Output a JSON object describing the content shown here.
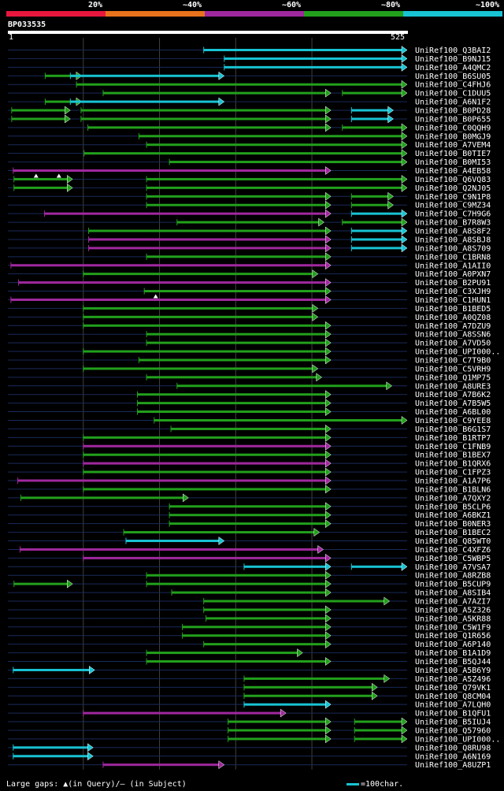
{
  "legend": [
    {
      "label": "20%",
      "color": "#e8173e"
    },
    {
      "label": "~40%",
      "color": "#e8731c"
    },
    {
      "label": "~60%",
      "color": "#a0289e"
    },
    {
      "label": "~80%",
      "color": "#22a01c"
    },
    {
      "label": "~100%",
      "color": "#18c3d3"
    }
  ],
  "query": {
    "id": "BP033535",
    "start": "1",
    "end": "525",
    "length": 525
  },
  "footer": {
    "gaps_text": "Large gaps: ▲(in Query)/– (in Subject)",
    "scale_text": "=100char."
  },
  "colors": {
    "purple": "#a0289e",
    "green": "#22a01c",
    "cyan": "#18c3d3",
    "rowline": "#1a2a5a",
    "grid": "#404040"
  },
  "chart_data": {
    "type": "alignment",
    "title": "BP033535",
    "x_unit": "residue",
    "xlim": [
      1,
      525
    ],
    "grid_at": [
      100,
      200,
      300,
      400
    ],
    "hits": [
      {
        "name": "UniRef100_Q3BAI2",
        "segs": [
          [
            258,
            525,
            "c"
          ]
        ]
      },
      {
        "name": "UniRef100_B9NJ15",
        "segs": [
          [
            285,
            525,
            "c"
          ]
        ]
      },
      {
        "name": "UniRef100_A4QMC2",
        "segs": [
          [
            285,
            525,
            "c"
          ]
        ]
      },
      {
        "name": "UniRef100_B6SU05",
        "segs": [
          [
            50,
            98,
            "g"
          ],
          [
            83,
            285,
            "c"
          ]
        ]
      },
      {
        "name": "UniRef100_C4FHJ6",
        "segs": [
          [
            91,
            525,
            "g"
          ]
        ]
      },
      {
        "name": "UniRef100_C1DUU5",
        "segs": [
          [
            126,
            425,
            "g"
          ],
          [
            440,
            525,
            "g"
          ]
        ]
      },
      {
        "name": "UniRef100_A6N1F2",
        "segs": [
          [
            50,
            98,
            "g"
          ],
          [
            83,
            285,
            "c"
          ]
        ]
      },
      {
        "name": "UniRef100_B0PD28",
        "segs": [
          [
            6,
            83,
            "g"
          ],
          [
            97,
            425,
            "g"
          ],
          [
            452,
            507,
            "c"
          ]
        ]
      },
      {
        "name": "UniRef100_B0P655",
        "segs": [
          [
            6,
            83,
            "g"
          ],
          [
            97,
            425,
            "g"
          ],
          [
            452,
            507,
            "c"
          ]
        ]
      },
      {
        "name": "UniRef100_C0QQH9",
        "segs": [
          [
            106,
            425,
            "g"
          ],
          [
            440,
            525,
            "g"
          ]
        ]
      },
      {
        "name": "UniRef100_B0MGJ9",
        "segs": [
          [
            173,
            525,
            "g"
          ]
        ]
      },
      {
        "name": "UniRef100_A7VEM4",
        "segs": [
          [
            183,
            525,
            "g"
          ]
        ]
      },
      {
        "name": "UniRef100_B0TIE7",
        "segs": [
          [
            101,
            525,
            "g"
          ]
        ]
      },
      {
        "name": "UniRef100_B0MI53",
        "segs": [
          [
            213,
            525,
            "g"
          ]
        ]
      },
      {
        "name": "UniRef100_A4EB58",
        "segs": [
          [
            8,
            425,
            "p"
          ]
        ],
        "gaps": [
          38,
          68
        ]
      },
      {
        "name": "UniRef100_Q6VQ83",
        "segs": [
          [
            9,
            86,
            "g"
          ],
          [
            183,
            525,
            "g"
          ]
        ]
      },
      {
        "name": "UniRef100_Q2NJ05",
        "segs": [
          [
            9,
            86,
            "g"
          ],
          [
            183,
            525,
            "g"
          ]
        ]
      },
      {
        "name": "UniRef100_C9N1P8",
        "segs": [
          [
            183,
            425,
            "g"
          ],
          [
            452,
            507,
            "g"
          ]
        ]
      },
      {
        "name": "UniRef100_C9MZ34",
        "segs": [
          [
            183,
            425,
            "g"
          ],
          [
            452,
            507,
            "g"
          ]
        ]
      },
      {
        "name": "UniRef100_C7H9G6",
        "segs": [
          [
            49,
            425,
            "p"
          ],
          [
            452,
            525,
            "c"
          ]
        ]
      },
      {
        "name": "UniRef100_B7R8W3",
        "segs": [
          [
            223,
            416,
            "g"
          ],
          [
            440,
            525,
            "g"
          ]
        ]
      },
      {
        "name": "UniRef100_A8S8F2",
        "segs": [
          [
            107,
            425,
            "g"
          ],
          [
            452,
            525,
            "c"
          ]
        ]
      },
      {
        "name": "UniRef100_A8SBJ8",
        "segs": [
          [
            107,
            425,
            "p"
          ],
          [
            452,
            525,
            "c"
          ]
        ]
      },
      {
        "name": "UniRef100_A8S709",
        "segs": [
          [
            107,
            425,
            "p"
          ],
          [
            452,
            525,
            "c"
          ]
        ]
      },
      {
        "name": "UniRef100_C1BRN8",
        "segs": [
          [
            183,
            425,
            "g"
          ]
        ]
      },
      {
        "name": "UniRef100_A1AII0",
        "segs": [
          [
            5,
            425,
            "p"
          ]
        ]
      },
      {
        "name": "UniRef100_A0PXN7",
        "segs": [
          [
            100,
            408,
            "g"
          ]
        ]
      },
      {
        "name": "UniRef100_B2PU91",
        "segs": [
          [
            15,
            425,
            "p"
          ]
        ]
      },
      {
        "name": "UniRef100_C3XJH9",
        "segs": [
          [
            180,
            425,
            "g"
          ]
        ],
        "gaps": [
          195
        ]
      },
      {
        "name": "UniRef100_C1HUN1",
        "segs": [
          [
            5,
            425,
            "p"
          ]
        ]
      },
      {
        "name": "UniRef100_B1BED5",
        "segs": [
          [
            100,
            408,
            "g"
          ]
        ]
      },
      {
        "name": "UniRef100_A0QZ08",
        "segs": [
          [
            100,
            408,
            "g"
          ]
        ]
      },
      {
        "name": "UniRef100_A7DZU9",
        "segs": [
          [
            100,
            425,
            "g"
          ]
        ]
      },
      {
        "name": "UniRef100_A8SSN6",
        "segs": [
          [
            183,
            425,
            "g"
          ]
        ]
      },
      {
        "name": "UniRef100_A7VD50",
        "segs": [
          [
            183,
            425,
            "g"
          ]
        ]
      },
      {
        "name": "UniRef100_UPI000..",
        "segs": [
          [
            100,
            425,
            "g"
          ]
        ]
      },
      {
        "name": "UniRef100_C7T9B0",
        "segs": [
          [
            173,
            425,
            "g"
          ]
        ]
      },
      {
        "name": "UniRef100_C5VRH9",
        "segs": [
          [
            100,
            408,
            "g"
          ]
        ]
      },
      {
        "name": "UniRef100_Q1MP75",
        "segs": [
          [
            183,
            413,
            "g"
          ]
        ]
      },
      {
        "name": "UniRef100_A8URE3",
        "segs": [
          [
            223,
            505,
            "g"
          ]
        ]
      },
      {
        "name": "UniRef100_A7B6K2",
        "segs": [
          [
            171,
            425,
            "g"
          ]
        ]
      },
      {
        "name": "UniRef100_A7B5W5",
        "segs": [
          [
            171,
            425,
            "g"
          ]
        ]
      },
      {
        "name": "UniRef100_A6BL00",
        "segs": [
          [
            171,
            425,
            "g"
          ]
        ]
      },
      {
        "name": "UniRef100_C9YEE8",
        "segs": [
          [
            193,
            525,
            "g"
          ]
        ]
      },
      {
        "name": "UniRef100_B6G1S7",
        "segs": [
          [
            215,
            425,
            "g"
          ]
        ]
      },
      {
        "name": "UniRef100_B1RTP7",
        "segs": [
          [
            100,
            425,
            "g"
          ]
        ]
      },
      {
        "name": "UniRef100_C1FNB9",
        "segs": [
          [
            100,
            425,
            "p"
          ]
        ]
      },
      {
        "name": "UniRef100_B1BEX7",
        "segs": [
          [
            100,
            425,
            "g"
          ]
        ]
      },
      {
        "name": "UniRef100_B1QRX6",
        "segs": [
          [
            100,
            425,
            "p"
          ]
        ]
      },
      {
        "name": "UniRef100_C1FPZ3",
        "segs": [
          [
            100,
            425,
            "g"
          ]
        ]
      },
      {
        "name": "UniRef100_A1A7P6",
        "segs": [
          [
            14,
            425,
            "p"
          ]
        ]
      },
      {
        "name": "UniRef100_B1BLN6",
        "segs": [
          [
            100,
            425,
            "g"
          ]
        ]
      },
      {
        "name": "UniRef100_A7QXY2",
        "segs": [
          [
            18,
            238,
            "g"
          ]
        ]
      },
      {
        "name": "UniRef100_B5CLP6",
        "segs": [
          [
            213,
            425,
            "g"
          ]
        ]
      },
      {
        "name": "UniRef100_A6BKZ1",
        "segs": [
          [
            213,
            425,
            "g"
          ]
        ]
      },
      {
        "name": "UniRef100_B0NER3",
        "segs": [
          [
            213,
            425,
            "g"
          ]
        ]
      },
      {
        "name": "UniRef100_B1BEC2",
        "segs": [
          [
            153,
            410,
            "g"
          ]
        ]
      },
      {
        "name": "UniRef100_Q85WT0",
        "segs": [
          [
            156,
            285,
            "c"
          ]
        ]
      },
      {
        "name": "UniRef100_C4XFZ6",
        "segs": [
          [
            17,
            415,
            "p"
          ]
        ]
      },
      {
        "name": "UniRef100_C5WBP5",
        "segs": [
          [
            100,
            425,
            "p"
          ]
        ]
      },
      {
        "name": "UniRef100_A7VSA7",
        "segs": [
          [
            311,
            425,
            "c"
          ],
          [
            452,
            525,
            "c"
          ]
        ]
      },
      {
        "name": "UniRef100_A8RZB8",
        "segs": [
          [
            183,
            425,
            "g"
          ]
        ]
      },
      {
        "name": "UniRef100_B5CUP9",
        "segs": [
          [
            9,
            86,
            "g"
          ],
          [
            183,
            425,
            "g"
          ]
        ]
      },
      {
        "name": "UniRef100_A8SIB4",
        "segs": [
          [
            216,
            425,
            "g"
          ]
        ]
      },
      {
        "name": "UniRef100_A7AZI7",
        "segs": [
          [
            258,
            502,
            "g"
          ]
        ]
      },
      {
        "name": "UniRef100_A5Z326",
        "segs": [
          [
            258,
            425,
            "g"
          ]
        ]
      },
      {
        "name": "UniRef100_A5KR88",
        "segs": [
          [
            261,
            425,
            "g"
          ]
        ]
      },
      {
        "name": "UniRef100_C5W1F9",
        "segs": [
          [
            230,
            425,
            "g"
          ]
        ]
      },
      {
        "name": "UniRef100_Q1R656",
        "segs": [
          [
            230,
            425,
            "g"
          ]
        ]
      },
      {
        "name": "UniRef100_A6P140",
        "segs": [
          [
            258,
            425,
            "g"
          ]
        ]
      },
      {
        "name": "UniRef100_B1A1D9",
        "segs": [
          [
            183,
            388,
            "g"
          ]
        ]
      },
      {
        "name": "UniRef100_B5QJ44",
        "segs": [
          [
            183,
            425,
            "g"
          ]
        ]
      },
      {
        "name": "UniRef100_A5B6Y9",
        "segs": [
          [
            8,
            115,
            "c"
          ]
        ]
      },
      {
        "name": "UniRef100_A5Z496",
        "segs": [
          [
            311,
            502,
            "g"
          ]
        ]
      },
      {
        "name": "UniRef100_Q79VK1",
        "segs": [
          [
            311,
            486,
            "g"
          ]
        ]
      },
      {
        "name": "UniRef100_Q8CM04",
        "segs": [
          [
            311,
            486,
            "g"
          ]
        ]
      },
      {
        "name": "UniRef100_A7LQH0",
        "segs": [
          [
            311,
            425,
            "c"
          ]
        ]
      },
      {
        "name": "UniRef100_B1QFU1",
        "segs": [
          [
            100,
            366,
            "p"
          ]
        ]
      },
      {
        "name": "UniRef100_B5IUJ4",
        "segs": [
          [
            290,
            425,
            "g"
          ],
          [
            456,
            525,
            "g"
          ]
        ]
      },
      {
        "name": "UniRef100_Q57960",
        "segs": [
          [
            290,
            425,
            "g"
          ],
          [
            456,
            525,
            "g"
          ]
        ]
      },
      {
        "name": "UniRef100_UPI000..",
        "segs": [
          [
            290,
            425,
            "g"
          ],
          [
            456,
            525,
            "g"
          ]
        ]
      },
      {
        "name": "UniRef100_Q8RU98",
        "segs": [
          [
            8,
            113,
            "c"
          ]
        ]
      },
      {
        "name": "UniRef100_A6N169",
        "segs": [
          [
            8,
            113,
            "c"
          ]
        ]
      },
      {
        "name": "UniRef100_A8UZP1",
        "segs": [
          [
            126,
            285,
            "p"
          ]
        ]
      }
    ]
  }
}
